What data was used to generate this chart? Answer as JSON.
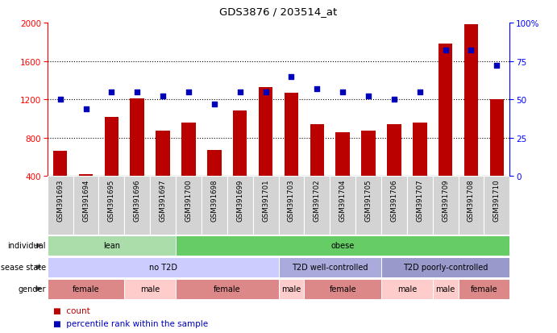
{
  "title": "GDS3876 / 203514_at",
  "samples": [
    "GSM391693",
    "GSM391694",
    "GSM391695",
    "GSM391696",
    "GSM391697",
    "GSM391700",
    "GSM391698",
    "GSM391699",
    "GSM391701",
    "GSM391703",
    "GSM391702",
    "GSM391704",
    "GSM391705",
    "GSM391706",
    "GSM391707",
    "GSM391709",
    "GSM391708",
    "GSM391710"
  ],
  "counts": [
    660,
    420,
    1020,
    1210,
    870,
    960,
    670,
    1080,
    1330,
    1270,
    940,
    860,
    870,
    940,
    960,
    1780,
    1980,
    1200
  ],
  "percentiles": [
    50,
    44,
    55,
    55,
    52,
    55,
    47,
    55,
    55,
    65,
    57,
    55,
    52,
    50,
    55,
    82,
    82,
    72
  ],
  "ylim_left": [
    400,
    2000
  ],
  "ylim_right": [
    0,
    100
  ],
  "yticks_left": [
    400,
    800,
    1200,
    1600,
    2000
  ],
  "yticks_right": [
    0,
    25,
    50,
    75,
    100
  ],
  "grid_values": [
    800,
    1200,
    1600
  ],
  "bar_color": "#bb0000",
  "dot_color": "#0000bb",
  "individual_groups": [
    {
      "label": "lean",
      "start": 0,
      "end": 5,
      "color": "#aaddaa"
    },
    {
      "label": "obese",
      "start": 5,
      "end": 18,
      "color": "#66cc66"
    }
  ],
  "disease_groups": [
    {
      "label": "no T2D",
      "start": 0,
      "end": 9,
      "color": "#ccccff"
    },
    {
      "label": "T2D well-controlled",
      "start": 9,
      "end": 13,
      "color": "#aaaadd"
    },
    {
      "label": "T2D poorly-controlled",
      "start": 13,
      "end": 18,
      "color": "#9999cc"
    }
  ],
  "gender_groups": [
    {
      "label": "female",
      "start": 0,
      "end": 3,
      "color": "#dd8888"
    },
    {
      "label": "male",
      "start": 3,
      "end": 5,
      "color": "#ffcccc"
    },
    {
      "label": "female",
      "start": 5,
      "end": 9,
      "color": "#dd8888"
    },
    {
      "label": "male",
      "start": 9,
      "end": 10,
      "color": "#ffcccc"
    },
    {
      "label": "female",
      "start": 10,
      "end": 13,
      "color": "#dd8888"
    },
    {
      "label": "male",
      "start": 13,
      "end": 15,
      "color": "#ffcccc"
    },
    {
      "label": "male",
      "start": 15,
      "end": 16,
      "color": "#ffcccc"
    },
    {
      "label": "female",
      "start": 16,
      "end": 18,
      "color": "#dd8888"
    }
  ],
  "legend_count_label": "count",
  "legend_pct_label": "percentile rank within the sample",
  "bar_width": 0.55
}
